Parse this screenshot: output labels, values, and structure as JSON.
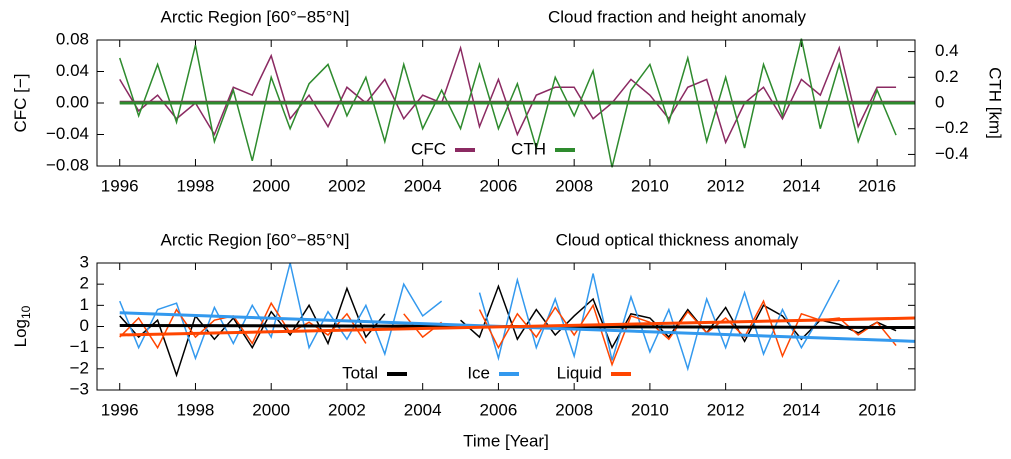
{
  "chart_data": [
    {
      "type": "line",
      "title": "Arctic Region [60°−85°N]",
      "subtitle": "Cloud fraction and height anomaly",
      "ylabel": "CFC [−]",
      "y2label": "CTH [km]",
      "legend": "lower center",
      "x": [
        1996,
        1996.5,
        1997,
        1997.5,
        1998,
        1998.5,
        1999,
        1999.5,
        2000,
        2000.5,
        2001,
        2001.5,
        2002,
        2002.5,
        2003,
        2003.5,
        2004,
        2004.5,
        2005,
        2005.5,
        2006,
        2006.5,
        2007,
        2007.5,
        2008,
        2008.5,
        2009,
        2009.5,
        2010,
        2010.5,
        2011,
        2011.5,
        2012,
        2012.5,
        2013,
        2013.5,
        2014,
        2014.5,
        2015,
        2015.5,
        2016,
        2016.5
      ],
      "xlim": [
        1995.4,
        2017.0
      ],
      "xticks": [
        1996,
        1998,
        2000,
        2002,
        2004,
        2006,
        2008,
        2010,
        2012,
        2014,
        2016
      ],
      "ylim": [
        -0.08,
        0.08
      ],
      "yticks": [
        {
          "value": -0.08,
          "label": "−0.08"
        },
        {
          "value": -0.04,
          "label": "−0.04"
        },
        {
          "value": 0,
          "label": "0.00"
        },
        0.04,
        0.08
      ],
      "y2lim": [
        -0.49,
        0.49
      ],
      "y2ticks": [
        {
          "value": -0.4,
          "label": "−0.4"
        },
        {
          "value": -0.2,
          "label": "−0.2"
        },
        0,
        0.2,
        0.4
      ],
      "trend_x": [
        1996,
        2017
      ],
      "series": [
        {
          "name": "CFC",
          "color": "#8b2a62",
          "values": [
            0.03,
            -0.01,
            0.01,
            -0.02,
            0.0,
            -0.04,
            0.02,
            0.01,
            0.06,
            -0.02,
            0.01,
            -0.03,
            0.02,
            0.0,
            0.03,
            -0.02,
            0.01,
            0.0,
            0.07,
            -0.03,
            0.03,
            -0.04,
            0.01,
            0.02,
            0.02,
            -0.02,
            0.0,
            0.03,
            0.01,
            -0.02,
            0.02,
            0.03,
            -0.05,
            0.0,
            0.02,
            -0.02,
            0.03,
            0.01,
            0.07,
            -0.03,
            0.02,
            0.02
          ],
          "trend": [
            0.001,
            0.001
          ]
        },
        {
          "name": "CTH",
          "color": "#2e8b2e",
          "axis": "y2",
          "values": [
            0.35,
            -0.1,
            0.3,
            -0.15,
            0.45,
            -0.3,
            0.1,
            -0.45,
            0.2,
            -0.2,
            0.15,
            0.3,
            -0.1,
            0.2,
            -0.3,
            0.3,
            -0.2,
            0.1,
            -0.2,
            0.3,
            -0.2,
            0.15,
            -0.35,
            0.2,
            -0.1,
            0.25,
            -0.5,
            0.1,
            0.3,
            -0.15,
            0.35,
            -0.3,
            0.2,
            -0.35,
            0.3,
            -0.1,
            0.5,
            -0.2,
            0.3,
            -0.3,
            0.1,
            -0.25
          ],
          "trend": [
            0,
            0
          ]
        }
      ]
    },
    {
      "type": "line",
      "title": "Arctic Region [60°−85°N]",
      "subtitle": "Cloud optical thickness anomaly",
      "ylabel": "Log",
      "ylabel_sub": "10",
      "xlabel": "Time [Year]",
      "legend": "lower center",
      "x": [
        1996,
        1996.5,
        1997,
        1997.5,
        1998,
        1998.5,
        1999,
        1999.5,
        2000,
        2000.5,
        2001,
        2001.5,
        2002,
        2002.5,
        2003,
        2003.5,
        2004,
        2004.5,
        2005,
        2005.5,
        2006,
        2006.5,
        2007,
        2007.5,
        2008,
        2008.5,
        2009,
        2009.5,
        2010,
        2010.5,
        2011,
        2011.5,
        2012,
        2012.5,
        2013,
        2013.5,
        2014,
        2014.5,
        2015,
        2015.5,
        2016,
        2016.5
      ],
      "xlim": [
        1995.4,
        2017.0
      ],
      "xticks": [
        1996,
        1998,
        2000,
        2002,
        2004,
        2006,
        2008,
        2010,
        2012,
        2014,
        2016
      ],
      "ylim": [
        -3,
        3
      ],
      "yticks": [
        {
          "value": -3,
          "label": "−3"
        },
        {
          "value": -2,
          "label": "−2"
        },
        {
          "value": -1,
          "label": "−1"
        },
        0,
        1,
        2,
        3
      ],
      "trend_x": [
        1996,
        2017
      ],
      "series": [
        {
          "name": "Total",
          "color": "#000000",
          "values": [
            0.5,
            -0.5,
            0.3,
            -2.3,
            0.5,
            -0.6,
            0.4,
            -1.0,
            0.7,
            -0.4,
            1.0,
            -0.8,
            1.8,
            -0.5,
            0.6,
            null,
            0.5,
            null,
            0.3,
            -0.5,
            1.9,
            -0.6,
            0.8,
            -0.4,
            0.5,
            1.3,
            -1.0,
            0.6,
            0.4,
            -0.5,
            0.8,
            -0.3,
            0.9,
            -0.7,
            1.0,
            0.5,
            -0.6,
            0.3,
            0.1,
            -0.3,
            0.2,
            -0.2
          ],
          "trend": [
            0.05,
            -0.05
          ]
        },
        {
          "name": "Ice",
          "color": "#3399ee",
          "values": [
            1.2,
            -1.0,
            0.8,
            1.1,
            -1.5,
            0.9,
            -0.8,
            1.0,
            -0.5,
            3.0,
            -1.0,
            0.7,
            -0.6,
            1.0,
            -1.3,
            2.0,
            0.5,
            1.2,
            null,
            1.6,
            -1.5,
            2.2,
            -1.0,
            1.3,
            -1.4,
            2.5,
            -1.6,
            1.4,
            -1.2,
            0.8,
            -2.0,
            1.3,
            -1.0,
            1.6,
            -1.3,
            0.8,
            -1.0,
            0.5,
            2.2,
            null,
            null,
            null
          ],
          "trend": [
            0.65,
            -0.7
          ]
        },
        {
          "name": "Liquid",
          "color": "#ff4500",
          "values": [
            -0.5,
            0.4,
            -1.0,
            0.8,
            -0.5,
            0.3,
            0.5,
            -0.8,
            1.1,
            -0.3,
            0.2,
            -0.4,
            0.6,
            -0.8,
            null,
            0.6,
            -0.5,
            0.2,
            null,
            0.8,
            -1.0,
            0.6,
            -0.5,
            0.9,
            -0.4,
            1.0,
            -1.8,
            0.5,
            0.2,
            -0.6,
            0.7,
            -0.3,
            0.4,
            -0.5,
            1.2,
            -1.4,
            0.6,
            0.3,
            0.4,
            -0.4,
            0.2,
            -0.9
          ],
          "trend": [
            -0.4,
            0.4
          ]
        }
      ]
    }
  ]
}
